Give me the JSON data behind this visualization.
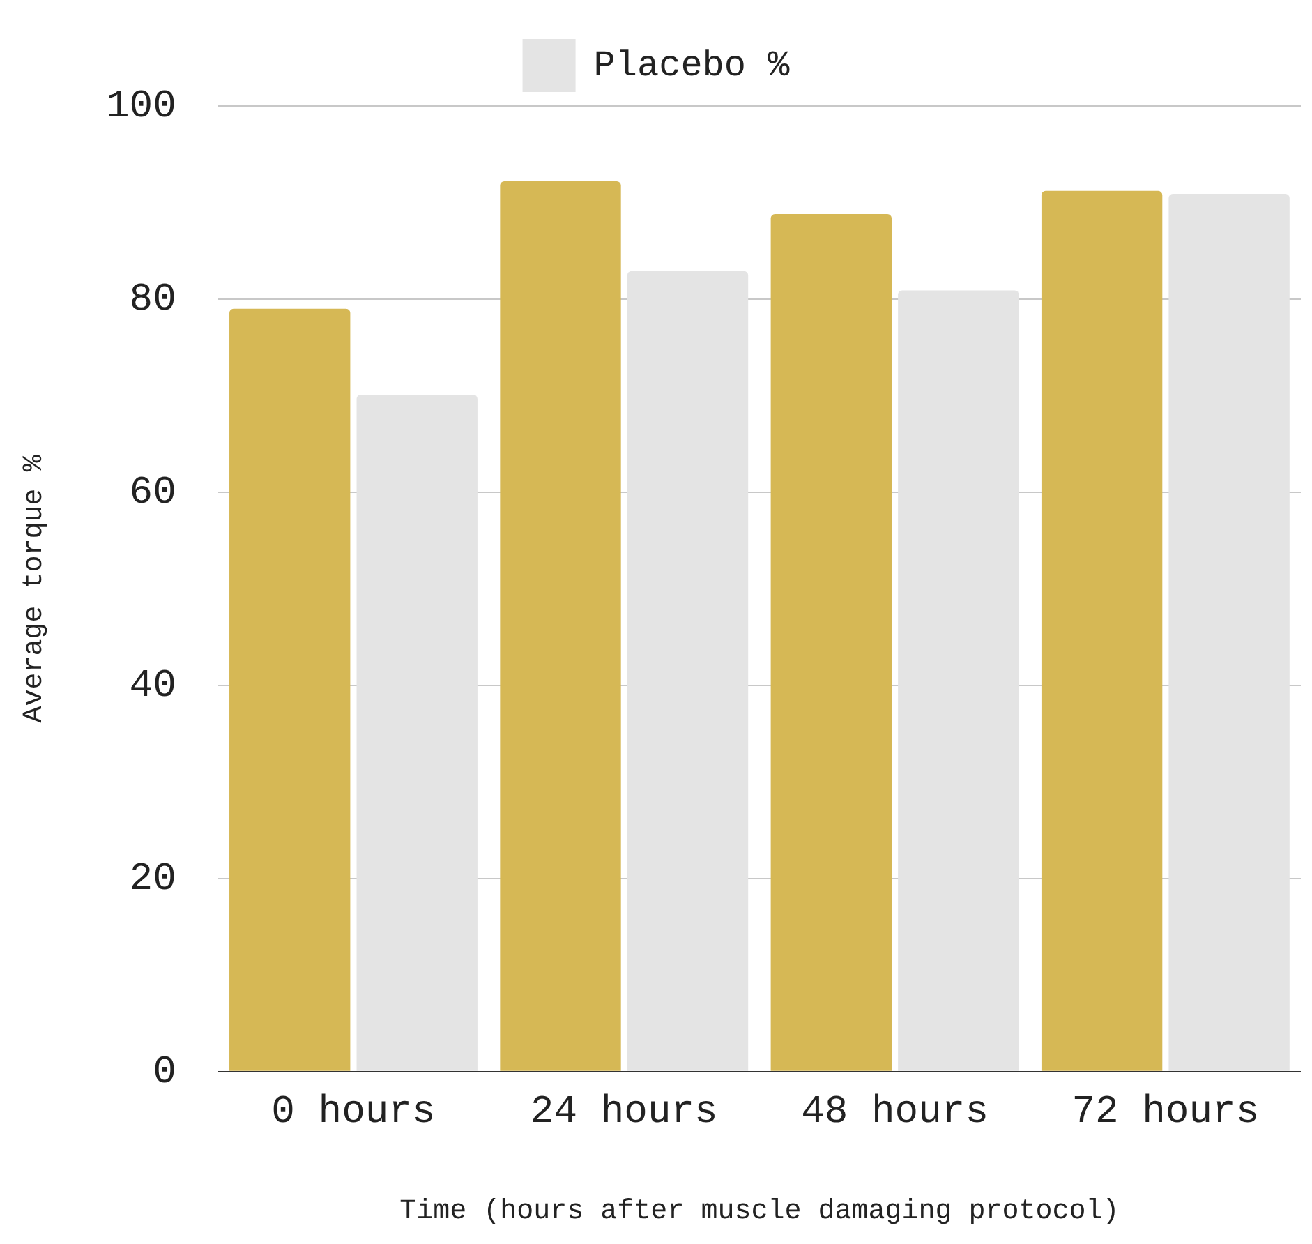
{
  "chart_data": {
    "type": "bar",
    "xlabel": "Time (hours after muscle damaging protocol)",
    "ylabel": "Average torque %",
    "categories": [
      "0 hours",
      "24 hours",
      "48 hours",
      "72 hours"
    ],
    "series": [
      {
        "color": "#d6b855",
        "values": [
          79,
          92.2,
          88.8,
          91.2
        ]
      },
      {
        "name": "Placebo %",
        "color": "#e4e4e4",
        "values": [
          70.1,
          82.9,
          80.9,
          90.9
        ]
      }
    ],
    "ylim": [
      0,
      100
    ],
    "yticks": [
      0,
      20,
      40,
      60,
      80,
      100
    ],
    "grid": "y",
    "legend": "top"
  }
}
